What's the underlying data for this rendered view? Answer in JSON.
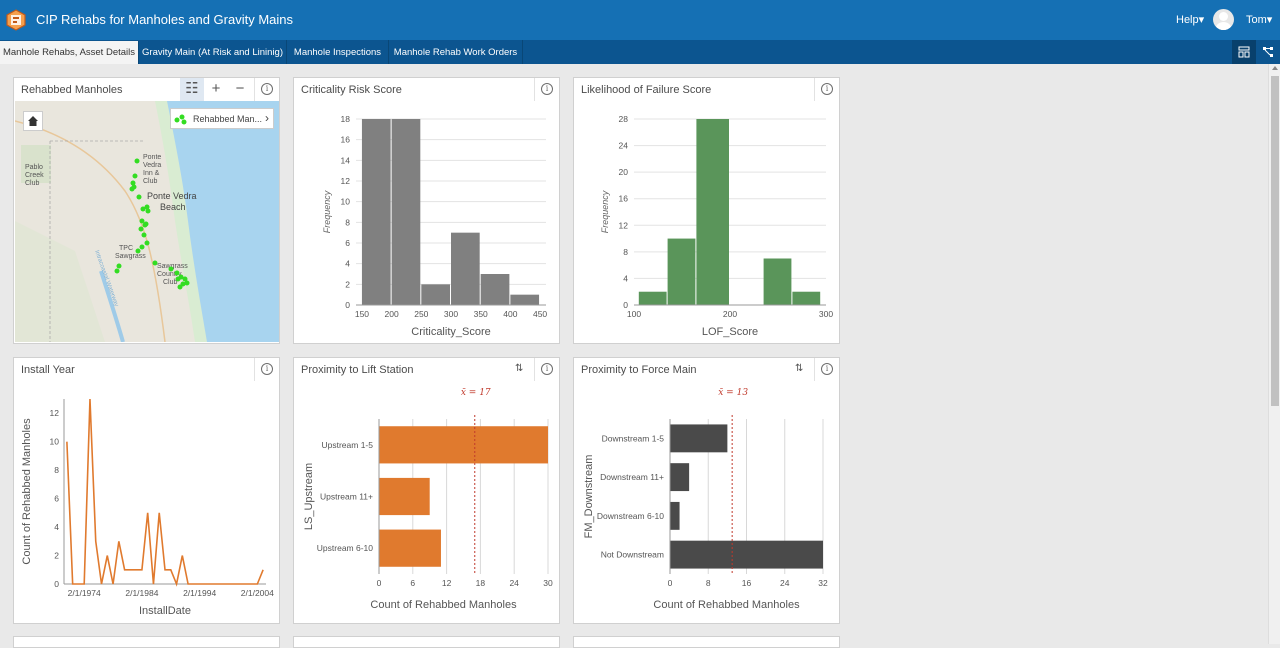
{
  "app": {
    "title": "CIP Rehabs for Manholes and Gravity Mains",
    "help": "Help▾",
    "user": "Tom▾"
  },
  "tabs": [
    {
      "label": "Manhole Rehabs, Asset Details",
      "active": true
    },
    {
      "label": "Gravity Main (At Risk and Lininig)",
      "active": false
    },
    {
      "label": "Manhole Inspections",
      "active": false
    },
    {
      "label": "Manhole Rehab Work Orders",
      "active": false
    }
  ],
  "colors": {
    "header": "#1570b4",
    "tabbar": "#0c5590",
    "gray_bar": "#808080",
    "green_bar": "#5a955a",
    "orange": "#e07a2e",
    "dark_bar": "#4a4a4a",
    "mean_line": "#c0392b",
    "map_points": "#33dd22"
  },
  "map": {
    "title": "Rehabbed Manholes",
    "legend_label": "Rehabbed Man...",
    "labels": [
      "Pablo Creek Club",
      "Ponte Vedra Inn & Club",
      "Ponte Vedra Beach",
      "TPC Sawgrass",
      "Sawgrass Country Club",
      "Intracoastal Waterway"
    ]
  },
  "charts": {
    "criticality": {
      "title": "Criticality Risk Score",
      "chart_data": {
        "type": "bar",
        "xlabel": "Criticality_Score",
        "ylabel": "Frequency",
        "bin_width": 50,
        "bins": [
          [
            150,
            200,
            18
          ],
          [
            200,
            250,
            18
          ],
          [
            250,
            300,
            2
          ],
          [
            300,
            350,
            7
          ],
          [
            350,
            400,
            3
          ],
          [
            400,
            450,
            1
          ]
        ],
        "xticks": [
          150,
          200,
          250,
          300,
          350,
          400,
          450
        ],
        "yticks": [
          0,
          2,
          4,
          6,
          8,
          10,
          12,
          14,
          16,
          18
        ],
        "xlim": [
          140,
          460
        ],
        "ylim": [
          0,
          18
        ]
      }
    },
    "lof": {
      "title": "Likelihood of Failure Score",
      "chart_data": {
        "type": "bar",
        "xlabel": "LOF_Score",
        "ylabel": "Frequency",
        "bins": [
          [
            105,
            135,
            2
          ],
          [
            135,
            165,
            10
          ],
          [
            165,
            200,
            28
          ],
          [
            200,
            235,
            0
          ],
          [
            235,
            265,
            7
          ],
          [
            265,
            295,
            2
          ]
        ],
        "xticks": [
          100,
          200,
          300
        ],
        "yticks": [
          0,
          4,
          8,
          12,
          16,
          20,
          24,
          28
        ],
        "xlim": [
          100,
          300
        ],
        "ylim": [
          0,
          28
        ]
      }
    },
    "install": {
      "title": "Install Year",
      "chart_data": {
        "type": "line",
        "xlabel": "InstallDate",
        "ylabel": "Count of Rehabbed Manholes",
        "xticks": [
          "2/1/1974",
          "2/1/1984",
          "2/1/1994",
          "2/1/2004"
        ],
        "yticks": [
          0,
          2,
          4,
          6,
          8,
          10,
          12
        ],
        "ylim": [
          0,
          13
        ],
        "x": [
          1971,
          1972,
          1974,
          1975,
          1976,
          1977,
          1978,
          1979,
          1980,
          1981,
          1982,
          1983,
          1984,
          1985,
          1986,
          1987,
          1988,
          1989,
          1990,
          1991,
          1992,
          1993,
          1994,
          1995,
          1996,
          1997,
          1998,
          1999,
          2000,
          2001,
          2002,
          2003,
          2004,
          2005
        ],
        "values": [
          10,
          0,
          0,
          13,
          3,
          0,
          2,
          0,
          3,
          1,
          1,
          1,
          1,
          5,
          0,
          5,
          1,
          1,
          0,
          2,
          0,
          0,
          0,
          0,
          0,
          0,
          0,
          0,
          0,
          0,
          0,
          0,
          0,
          1
        ]
      }
    },
    "lift": {
      "title": "Proximity to Lift Station",
      "mean_label": "x̄ = 17",
      "chart_data": {
        "type": "bar",
        "orientation": "horizontal",
        "categories": [
          "Upstream 1-5",
          "Upstream 11+",
          "Upstream 6-10"
        ],
        "values": [
          30,
          9,
          11
        ],
        "mean": 17,
        "xlabel": "Count of Rehabbed Manholes",
        "ylabel": "LS_Upstream",
        "xticks": [
          0,
          6,
          12,
          18,
          24,
          30
        ],
        "xlim": [
          0,
          30
        ]
      }
    },
    "force": {
      "title": "Proximity to Force Main",
      "mean_label": "x̄ = 13",
      "chart_data": {
        "type": "bar",
        "orientation": "horizontal",
        "categories": [
          "Downstream 1-5",
          "Downstream 11+",
          "Downstream 6-10",
          "Not Downstream"
        ],
        "values": [
          12,
          4,
          2,
          32
        ],
        "mean": 13,
        "xlabel": "Count of Rehabbed Manholes",
        "ylabel": "FM_Downstream",
        "xticks": [
          0,
          8,
          16,
          24,
          32
        ],
        "xlim": [
          0,
          32
        ]
      }
    }
  }
}
